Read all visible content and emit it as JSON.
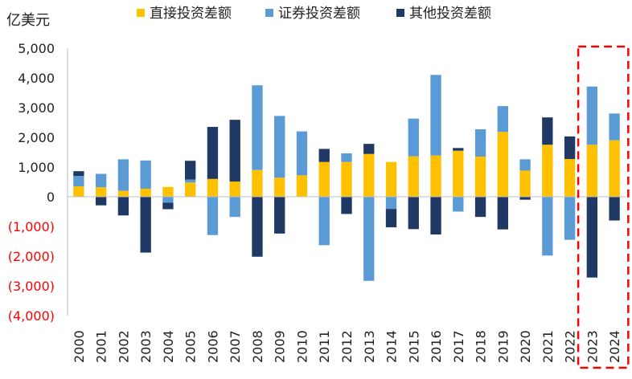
{
  "chart_data": {
    "type": "bar",
    "stacked": true,
    "unit_label": "亿美元",
    "categories": [
      "2000",
      "2001",
      "2002",
      "2003",
      "2004",
      "2005",
      "2006",
      "2007",
      "2008",
      "2009",
      "2010",
      "2011",
      "2012",
      "2013",
      "2014",
      "2015",
      "2016",
      "2017",
      "2018",
      "2019",
      "2020",
      "2021",
      "2022",
      "2023",
      "2024"
    ],
    "series": [
      {
        "name": "直接投资差额",
        "color": "#FFC000",
        "values": [
          350,
          320,
          200,
          270,
          330,
          480,
          600,
          510,
          900,
          640,
          720,
          1170,
          1170,
          1440,
          1170,
          1360,
          1390,
          1550,
          1350,
          2180,
          880,
          1750,
          1270,
          1750,
          1900
        ]
      },
      {
        "name": "证券投资差额",
        "color": "#5B9BD5",
        "values": [
          350,
          450,
          1060,
          950,
          -200,
          100,
          -1290,
          -680,
          2850,
          2080,
          1480,
          -1630,
          290,
          -2830,
          -410,
          1270,
          2710,
          -500,
          920,
          870,
          380,
          -1980,
          -1450,
          1960,
          900
        ]
      },
      {
        "name": "其他投资差额",
        "color": "#1F3864",
        "values": [
          160,
          -290,
          -630,
          -1880,
          -220,
          630,
          1750,
          2080,
          -2020,
          -1240,
          0,
          440,
          -580,
          340,
          -620,
          -1090,
          -1270,
          90,
          -680,
          -1100,
          -100,
          920,
          760,
          -2720,
          -800
        ]
      }
    ],
    "y_ticks": [
      5000,
      4000,
      3000,
      2000,
      1000,
      0,
      -1000,
      -2000,
      -3000,
      -4000
    ],
    "y_tick_labels": [
      "5,000",
      "4,000",
      "3,000",
      "2,000",
      "1,000",
      "0",
      "(1,000)",
      "(2,000)",
      "(3,000)",
      "(4,000)"
    ],
    "ylim": [
      -4000,
      5000
    ],
    "grid": false,
    "legend_position": "top",
    "highlight_categories": [
      "2023",
      "2024"
    ],
    "colors": {
      "negative_tick": "#FF0000",
      "positive_tick": "#222222",
      "highlight_box": "#FF0000"
    }
  }
}
